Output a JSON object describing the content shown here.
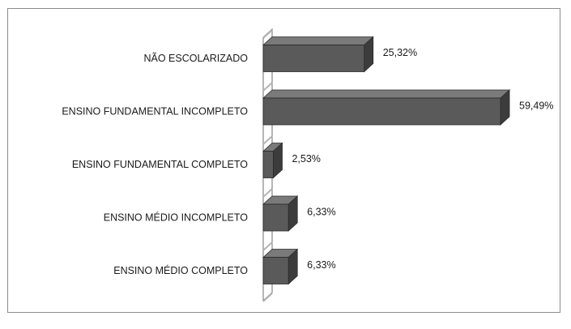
{
  "chart_data": {
    "type": "bar",
    "orientation": "horizontal",
    "style": "3d",
    "categories": [
      "NÃO ESCOLARIZADO",
      "ENSINO FUNDAMENTAL INCOMPLETO",
      "ENSINO FUNDAMENTAL COMPLETO",
      "ENSINO MÉDIO INCOMPLETO",
      "ENSINO MÉDIO COMPLETO"
    ],
    "values": [
      25.32,
      59.49,
      2.53,
      6.33,
      6.33
    ],
    "value_labels": [
      "25,32%",
      "59,49%",
      "2,53%",
      "6,33%",
      "6,33%"
    ],
    "xlim": [
      0,
      60
    ],
    "grid": false,
    "legend": "none",
    "colors": {
      "bar_front": "#5a5a5a",
      "bar_top": "#7a7a7a",
      "bar_side": "#3c3c3c",
      "bar_edge": "#2a2a2a",
      "wall": "#ffffff",
      "frame": "#8c8c8c"
    }
  }
}
